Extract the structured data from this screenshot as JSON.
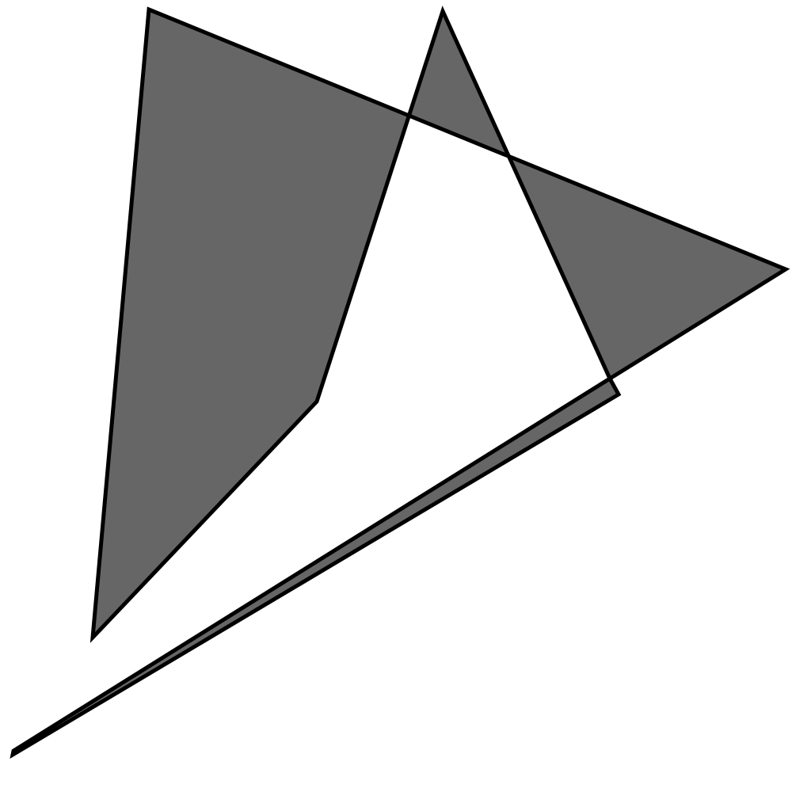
{
  "diagram": {
    "background": "#ffffff",
    "shape": {
      "name": "self-intersecting-polygon",
      "fill": "#666666",
      "stroke": "#000000",
      "fill_rule": "evenodd"
    }
  }
}
